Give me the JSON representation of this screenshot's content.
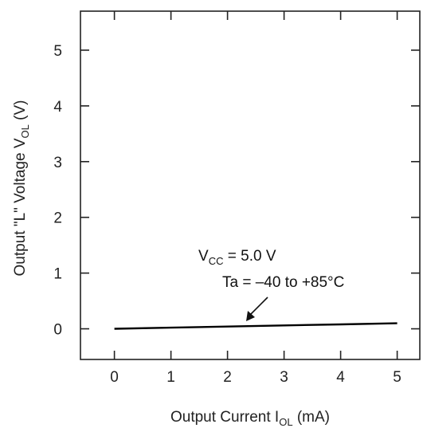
{
  "chart_data": {
    "type": "line",
    "x_axis": {
      "label_main": "Output Current I",
      "label_sub": "OL",
      "label_unit": " (mA)",
      "range": [
        -0.6,
        5.4
      ],
      "ticks": [
        0,
        1,
        2,
        3,
        4,
        5
      ],
      "tick_labels": [
        "0",
        "1",
        "2",
        "3",
        "4",
        "5"
      ]
    },
    "y_axis": {
      "label_main": "Output \"L\" Voltage V",
      "label_sub": "OL",
      "label_unit": " (V)",
      "range": [
        -0.55,
        5.7
      ],
      "ticks": [
        0,
        1,
        2,
        3,
        4,
        5
      ],
      "tick_labels": [
        "0",
        "1",
        "2",
        "3",
        "4",
        "5"
      ]
    },
    "series": [
      {
        "x": [
          0,
          1,
          2,
          3,
          4,
          5
        ],
        "y": [
          0.0,
          0.02,
          0.04,
          0.06,
          0.08,
          0.1
        ]
      }
    ],
    "annotation": {
      "line1_main": "V",
      "line1_sub": "CC",
      "line1_rest": " = 5.0 V",
      "line2": "Ta = –40 to +85°C"
    },
    "grid": false,
    "colors": {
      "line": "#000000",
      "axis": "#222222"
    }
  }
}
